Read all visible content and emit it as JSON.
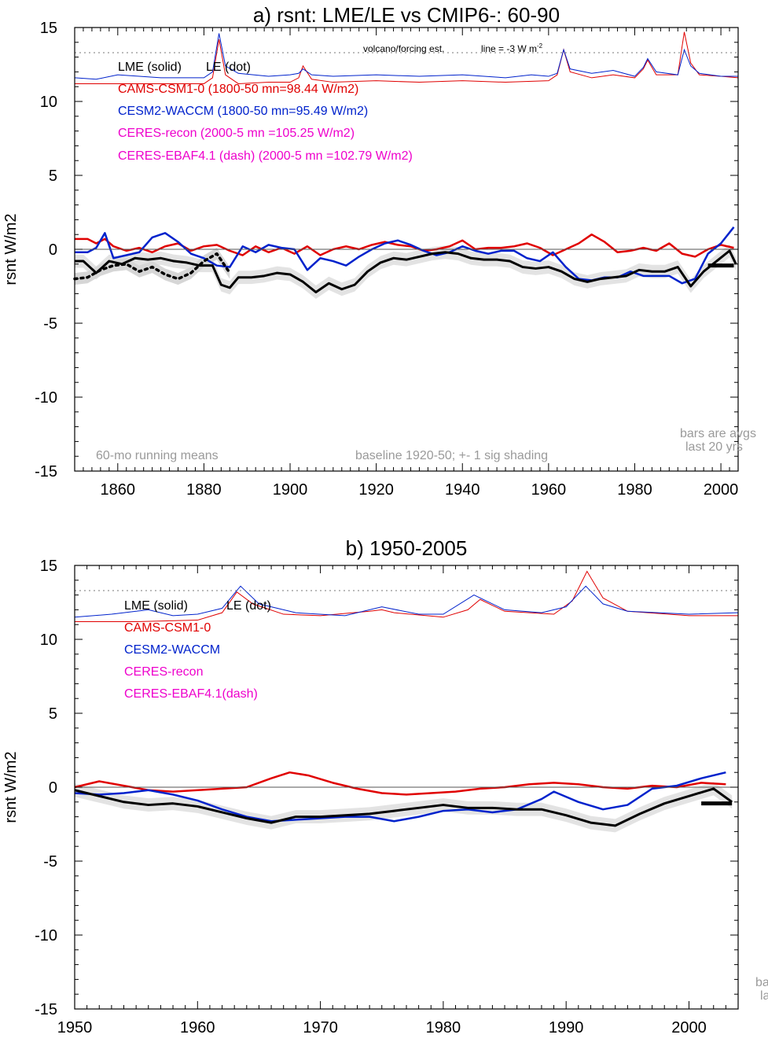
{
  "panels": [
    {
      "title": "a) rsnt: LME/LE vs CMIP6-: 60-90",
      "ylabel": "rsnt W/m2",
      "xlim": [
        1850,
        2004
      ],
      "ylim": [
        -15,
        15
      ],
      "xticks": [
        1860,
        1880,
        1900,
        1920,
        1940,
        1960,
        1980,
        2000
      ],
      "yticks": [
        15,
        10,
        5,
        0,
        -5,
        -10,
        -15
      ],
      "legend": [
        {
          "text": "LME (solid)",
          "color": "#000000"
        },
        {
          "text": "LE (dot)",
          "color": "#000000"
        },
        {
          "text": "CAMS-CSM1-0 (1800-50 mn=98.44 W/m2)",
          "color": "#e00000"
        },
        {
          "text": "CESM2-WACCM (1800-50 mn=95.49 W/m2)",
          "color": "#0022cc"
        },
        {
          "text": "CERES-recon (2000-5 mn =105.25 W/m2)",
          "color": "#ee00cc"
        },
        {
          "text": "CERES-EBAF4.1 (dash) (2000-5 mn =102.79 W/m2)",
          "color": "#ee00cc"
        }
      ],
      "volcano_note": "volcano/forcing est.",
      "line_note": "line = -3 W m",
      "line_note_sup": "-2",
      "running_note": "60-mo running means",
      "baseline_note": "baseline 1920-50; +- 1 sig shading",
      "bars_note_1": "bars are avgs",
      "bars_note_2": "last 20 yrs"
    },
    {
      "title": "b) 1950-2005",
      "ylabel": "rsnt W/m2",
      "xlim": [
        1950,
        2004
      ],
      "ylim": [
        -15,
        15
      ],
      "xticks": [
        1950,
        1960,
        1970,
        1980,
        1990,
        2000
      ],
      "yticks": [
        15,
        10,
        5,
        0,
        -5,
        -10,
        -15
      ],
      "legend": [
        {
          "text": "LME (solid)",
          "color": "#000000"
        },
        {
          "text": "LE (dot)",
          "color": "#000000"
        },
        {
          "text": "CAMS-CSM1-0",
          "color": "#e00000"
        },
        {
          "text": "CESM2-WACCM",
          "color": "#0022cc"
        },
        {
          "text": "CERES-recon",
          "color": "#ee00cc"
        },
        {
          "text": "CERES-EBAF4.1(dash)",
          "color": "#ee00cc"
        }
      ],
      "bars_note_1": "ba",
      "bars_note_2": "la"
    }
  ],
  "chart_data": [
    {
      "type": "line",
      "title": "a) rsnt: LME/LE vs CMIP6-: 60-90",
      "ylabel": "rsnt W/m2",
      "xlim": [
        1850,
        2004
      ],
      "ylim": [
        -15,
        15
      ],
      "grid": false,
      "reference_lines": [
        0,
        13.3
      ],
      "series": [
        {
          "name": "CAMS-CSM1-0",
          "color": "#e00000",
          "width": 2.5,
          "x": [
            1850,
            1853,
            1855,
            1857,
            1859,
            1862,
            1865,
            1868,
            1871,
            1874,
            1877,
            1880,
            1883,
            1886,
            1889,
            1892,
            1895,
            1898,
            1901,
            1904,
            1907,
            1910,
            1913,
            1916,
            1919,
            1922,
            1925,
            1928,
            1931,
            1934,
            1937,
            1940,
            1943,
            1946,
            1949,
            1952,
            1955,
            1958,
            1961,
            1964,
            1967,
            1970,
            1973,
            1976,
            1979,
            1982,
            1985,
            1988,
            1991,
            1994,
            1997,
            2000,
            2003
          ],
          "y": [
            0.7,
            0.7,
            0.4,
            0.7,
            0.2,
            -0.1,
            0.1,
            -0.2,
            0.2,
            0.4,
            -0.1,
            0.2,
            0.3,
            -0.1,
            -0.4,
            0.2,
            -0.2,
            0.1,
            -0.3,
            0.2,
            -0.4,
            0.0,
            0.2,
            0.0,
            0.3,
            0.5,
            0.3,
            0.2,
            -0.1,
            0.0,
            0.2,
            0.6,
            0.0,
            0.1,
            0.1,
            0.2,
            0.4,
            0.1,
            -0.4,
            0.0,
            0.4,
            1.0,
            0.5,
            -0.2,
            -0.1,
            0.1,
            -0.1,
            0.4,
            -0.3,
            -0.5,
            0.0,
            0.3,
            0.1
          ]
        },
        {
          "name": "CESM2-WACCM",
          "color": "#0022cc",
          "width": 2.5,
          "x": [
            1850,
            1853,
            1855,
            1857,
            1859,
            1862,
            1865,
            1868,
            1871,
            1874,
            1877,
            1880,
            1883,
            1886,
            1889,
            1892,
            1895,
            1898,
            1901,
            1904,
            1907,
            1910,
            1913,
            1916,
            1919,
            1922,
            1925,
            1928,
            1931,
            1934,
            1937,
            1940,
            1943,
            1946,
            1949,
            1952,
            1955,
            1958,
            1961,
            1964,
            1967,
            1970,
            1973,
            1976,
            1979,
            1982,
            1985,
            1988,
            1991,
            1994,
            1997,
            2000,
            2003
          ],
          "y": [
            -0.2,
            -0.2,
            0.1,
            1.1,
            -0.6,
            -0.4,
            -0.2,
            0.8,
            1.1,
            0.5,
            -0.3,
            -0.6,
            -1.1,
            -1.2,
            0.2,
            -0.2,
            0.3,
            0.1,
            0.0,
            -1.4,
            -0.6,
            -0.8,
            -1.1,
            -0.5,
            0.0,
            0.4,
            0.6,
            0.3,
            -0.1,
            -0.4,
            -0.2,
            0.2,
            -0.1,
            -0.3,
            -0.1,
            -0.1,
            -0.6,
            -0.8,
            -0.2,
            -1.2,
            -2.0,
            -2.1,
            -1.9,
            -1.9,
            -1.5,
            -1.8,
            -1.8,
            -1.8,
            -2.3,
            -2.0,
            -0.3,
            0.4,
            1.5
          ]
        },
        {
          "name": "LME (solid)",
          "color": "#000000",
          "width": 3,
          "x": [
            1850,
            1852,
            1855,
            1858,
            1861,
            1864,
            1867,
            1870,
            1873,
            1876,
            1879,
            1882,
            1884,
            1886,
            1888,
            1891,
            1894,
            1897,
            1900,
            1903,
            1906,
            1909,
            1912,
            1915,
            1918,
            1921,
            1924,
            1927,
            1930,
            1933,
            1936,
            1939,
            1942,
            1945,
            1948,
            1951,
            1954,
            1957,
            1960,
            1963,
            1966,
            1969,
            1972,
            1975,
            1978,
            1981,
            1984,
            1987,
            1990,
            1993,
            1996,
            1999,
            2002,
            2003.5
          ],
          "y": [
            -0.8,
            -0.8,
            -1.6,
            -0.8,
            -1.0,
            -0.6,
            -0.7,
            -0.6,
            -0.8,
            -0.9,
            -1.1,
            -1.1,
            -2.4,
            -2.6,
            -1.9,
            -1.9,
            -1.8,
            -1.6,
            -1.7,
            -2.2,
            -2.9,
            -2.3,
            -2.7,
            -2.4,
            -1.5,
            -0.9,
            -0.6,
            -0.7,
            -0.5,
            -0.3,
            -0.2,
            -0.3,
            -0.6,
            -0.7,
            -0.7,
            -0.8,
            -1.2,
            -1.3,
            -1.2,
            -1.5,
            -2.0,
            -2.2,
            -2.0,
            -1.9,
            -1.8,
            -1.4,
            -1.5,
            -1.5,
            -1.2,
            -2.5,
            -1.5,
            -0.8,
            -0.1,
            -1.0
          ]
        },
        {
          "name": "LE (dot)",
          "color": "#000000",
          "width": 3,
          "dotted": true,
          "x": [
            1850,
            1853,
            1856,
            1859,
            1862,
            1865,
            1868,
            1871,
            1874,
            1877,
            1880,
            1883,
            1886
          ],
          "y": [
            -2.0,
            -1.9,
            -1.4,
            -1.1,
            -1.0,
            -1.5,
            -1.2,
            -1.7,
            -2.0,
            -1.6,
            -0.8,
            -0.3,
            -1.6
          ]
        }
      ],
      "volcano_series": [
        {
          "name": "CAMS-CSM1-0 volcano",
          "color": "#e00000",
          "x": [
            1850,
            1860,
            1870,
            1880,
            1882,
            1883.5,
            1885,
            1888,
            1895,
            1900,
            1902,
            1903,
            1905,
            1910,
            1920,
            1930,
            1940,
            1950,
            1960,
            1962,
            1963.5,
            1965,
            1970,
            1975,
            1980,
            1982,
            1983,
            1985,
            1990,
            1991.5,
            1993,
            1995,
            2000,
            2004
          ],
          "y": [
            11.2,
            11.2,
            11.2,
            11.2,
            11.6,
            14.2,
            11.8,
            11.2,
            11.3,
            11.3,
            11.6,
            12.4,
            11.5,
            11.3,
            11.4,
            11.3,
            11.4,
            11.3,
            11.4,
            11.8,
            13.5,
            12.0,
            11.6,
            11.8,
            11.6,
            12.2,
            12.8,
            11.8,
            11.8,
            14.7,
            12.6,
            11.8,
            11.7,
            11.6
          ]
        },
        {
          "name": "CESM2-WACCM volcano",
          "color": "#0022cc",
          "x": [
            1850,
            1855,
            1860,
            1870,
            1880,
            1882,
            1883.5,
            1885,
            1888,
            1895,
            1900,
            1902,
            1903,
            1905,
            1910,
            1920,
            1930,
            1940,
            1950,
            1956,
            1960,
            1962,
            1963.5,
            1965,
            1970,
            1975,
            1980,
            1982,
            1983,
            1985,
            1990,
            1991.5,
            1993,
            1995,
            2000,
            2004
          ],
          "y": [
            11.6,
            11.5,
            11.8,
            11.6,
            11.6,
            12.0,
            14.6,
            12.4,
            11.9,
            11.7,
            11.8,
            11.9,
            12.2,
            11.8,
            11.7,
            11.8,
            11.7,
            11.8,
            11.6,
            11.8,
            11.7,
            11.9,
            13.5,
            12.2,
            11.9,
            12.1,
            11.7,
            12.3,
            12.9,
            12.0,
            11.8,
            13.5,
            12.4,
            11.9,
            11.7,
            11.7
          ]
        }
      ],
      "bars": [
        {
          "x0": 1997,
          "x1": 2003,
          "y": -1.1
        }
      ]
    },
    {
      "type": "line",
      "title": "b) 1950-2005",
      "ylabel": "rsnt W/m2",
      "xlim": [
        1950,
        2004
      ],
      "ylim": [
        -15,
        15
      ],
      "grid": false,
      "reference_lines": [
        0,
        13.3
      ],
      "series": [
        {
          "name": "CAMS-CSM1-0",
          "color": "#e00000",
          "width": 2.5,
          "x": [
            1950,
            1951,
            1952,
            1954,
            1956,
            1958,
            1960,
            1962,
            1964,
            1966,
            1967.5,
            1969,
            1971,
            1973,
            1975,
            1977,
            1979,
            1981,
            1983,
            1985,
            1987,
            1989,
            1991,
            1993,
            1995,
            1997,
            1999,
            2001,
            2003
          ],
          "y": [
            0.0,
            0.2,
            0.4,
            0.1,
            -0.2,
            -0.3,
            -0.2,
            -0.1,
            0.0,
            0.6,
            1.0,
            0.8,
            0.3,
            -0.1,
            -0.4,
            -0.5,
            -0.4,
            -0.3,
            -0.1,
            0.0,
            0.2,
            0.3,
            0.2,
            0.0,
            -0.1,
            0.1,
            0.0,
            0.3,
            0.2
          ]
        },
        {
          "name": "CESM2-WACCM",
          "color": "#0022cc",
          "width": 2.5,
          "x": [
            1950,
            1952,
            1954,
            1956,
            1958,
            1960,
            1962,
            1964,
            1966,
            1968,
            1970,
            1972,
            1974,
            1976,
            1978,
            1980,
            1982,
            1984,
            1986,
            1988,
            1989,
            1991,
            1993,
            1995,
            1997,
            1999,
            2001,
            2003
          ],
          "y": [
            -0.4,
            -0.5,
            -0.4,
            -0.2,
            -0.5,
            -0.9,
            -1.5,
            -2.0,
            -2.3,
            -2.2,
            -2.1,
            -2.0,
            -2.0,
            -2.3,
            -2.0,
            -1.6,
            -1.5,
            -1.7,
            -1.5,
            -0.8,
            -0.3,
            -1.0,
            -1.5,
            -1.2,
            -0.1,
            0.1,
            0.6,
            1.0
          ]
        },
        {
          "name": "LME (solid)",
          "color": "#000000",
          "width": 3,
          "x": [
            1950,
            1952,
            1954,
            1956,
            1958,
            1960,
            1962,
            1964,
            1966,
            1968,
            1970,
            1972,
            1974,
            1976,
            1978,
            1980,
            1982,
            1984,
            1986,
            1988,
            1990,
            1992,
            1994,
            1996,
            1998,
            2000,
            2002,
            2003.5
          ],
          "y": [
            -0.2,
            -0.6,
            -1.0,
            -1.2,
            -1.1,
            -1.3,
            -1.7,
            -2.1,
            -2.4,
            -2.0,
            -2.0,
            -1.9,
            -1.8,
            -1.6,
            -1.4,
            -1.2,
            -1.4,
            -1.4,
            -1.5,
            -1.5,
            -1.9,
            -2.4,
            -2.6,
            -1.8,
            -1.1,
            -0.6,
            -0.1,
            -1.0
          ]
        }
      ],
      "volcano_series": [
        {
          "name": "CAMS-CSM1-0 volcano",
          "color": "#e00000",
          "x": [
            1950,
            1955,
            1960,
            1962,
            1963.2,
            1964.5,
            1967,
            1970,
            1974,
            1975,
            1976,
            1980,
            1982,
            1983,
            1985,
            1989,
            1990.5,
            1991.7,
            1993,
            1995,
            2000,
            2004
          ],
          "y": [
            11.2,
            11.2,
            11.3,
            11.8,
            13.2,
            12.4,
            11.7,
            11.6,
            11.9,
            12.0,
            11.8,
            11.5,
            12.0,
            12.7,
            11.9,
            11.7,
            12.6,
            14.6,
            12.8,
            11.9,
            11.6,
            11.6
          ]
        },
        {
          "name": "CESM2-WACCM volcano",
          "color": "#0022cc",
          "x": [
            1950,
            1953,
            1956,
            1958,
            1960,
            1962,
            1963.5,
            1965,
            1968,
            1972,
            1975,
            1978,
            1980,
            1982.5,
            1985,
            1988,
            1990,
            1991.6,
            1993,
            1995,
            2000,
            2004
          ],
          "y": [
            11.5,
            11.7,
            12.0,
            11.6,
            11.7,
            12.1,
            13.6,
            12.4,
            11.8,
            11.6,
            12.2,
            11.7,
            11.7,
            13.0,
            12.0,
            11.8,
            12.2,
            13.6,
            12.4,
            11.9,
            11.7,
            11.8
          ]
        }
      ],
      "bars": [
        {
          "x0": 2001,
          "x1": 2003.5,
          "y": -1.1
        }
      ]
    }
  ]
}
